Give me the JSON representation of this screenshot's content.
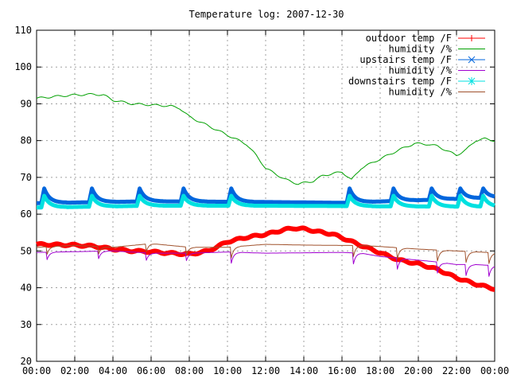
{
  "chart_data": {
    "type": "line",
    "title": "Temperature log: 2007-12-30",
    "xlabel": "",
    "ylabel": "",
    "xlim": [
      "00:00",
      "24:00"
    ],
    "ylim": [
      20,
      110
    ],
    "x_ticks": [
      "00:00",
      "02:00",
      "04:00",
      "06:00",
      "08:00",
      "10:00",
      "12:00",
      "14:00",
      "16:00",
      "18:00",
      "20:00",
      "22:00",
      "00:00"
    ],
    "y_ticks": [
      20,
      30,
      40,
      50,
      60,
      70,
      80,
      90,
      100,
      110
    ],
    "grid": true,
    "legend_position": "top-right",
    "series": [
      {
        "name": "outdoor temp /F",
        "color": "#ff0000",
        "marker": "+",
        "points": [
          [
            0,
            51.8
          ],
          [
            1,
            51.7
          ],
          [
            2,
            51.6
          ],
          [
            3,
            51.3
          ],
          [
            4,
            50.5
          ],
          [
            5,
            50.0
          ],
          [
            6,
            49.8
          ],
          [
            7,
            49.4
          ],
          [
            8,
            49.1
          ],
          [
            9,
            50.0
          ],
          [
            10,
            52.5
          ],
          [
            11,
            53.7
          ],
          [
            12,
            54.5
          ],
          [
            13,
            55.8
          ],
          [
            13.5,
            56.2
          ],
          [
            14,
            56.0
          ],
          [
            15,
            55.0
          ],
          [
            15.5,
            54.6
          ],
          [
            16,
            53.6
          ],
          [
            17,
            51.5
          ],
          [
            18,
            49.5
          ],
          [
            19,
            47.5
          ],
          [
            20,
            46.5
          ],
          [
            21,
            45.0
          ],
          [
            22,
            42.7
          ],
          [
            23,
            41.0
          ],
          [
            24,
            39.7
          ]
        ]
      },
      {
        "name": "humidity /%",
        "color": "#00a000",
        "marker": "",
        "points": [
          [
            0,
            91.5
          ],
          [
            1,
            92.0
          ],
          [
            2,
            92.4
          ],
          [
            3,
            92.6
          ],
          [
            3.5,
            92.4
          ],
          [
            4,
            91.0
          ],
          [
            5,
            90.0
          ],
          [
            6,
            89.7
          ],
          [
            7,
            89.4
          ],
          [
            7.5,
            88.8
          ],
          [
            8,
            86.5
          ],
          [
            9,
            84.0
          ],
          [
            10,
            81.5
          ],
          [
            11,
            79.0
          ],
          [
            11.5,
            76.0
          ],
          [
            12,
            72.5
          ],
          [
            13,
            69.5
          ],
          [
            13.7,
            68.2
          ],
          [
            14.5,
            69.0
          ],
          [
            15,
            70.5
          ],
          [
            16,
            71.5
          ],
          [
            16.5,
            69.3
          ],
          [
            17,
            72.5
          ],
          [
            18,
            75.0
          ],
          [
            19,
            77.5
          ],
          [
            19.8,
            79.2
          ],
          [
            20.5,
            79.0
          ],
          [
            21,
            78.5
          ],
          [
            22,
            76.0
          ],
          [
            22.5,
            77.5
          ],
          [
            23,
            80.0
          ],
          [
            23.5,
            80.5
          ],
          [
            24,
            80.0
          ]
        ]
      },
      {
        "name": "upstairs temp /F",
        "color": "#0066dd",
        "marker": "x",
        "sawtooth": {
          "base": 62.5,
          "drift": [
            [
              0,
              63.0
            ],
            [
              6,
              63.5
            ],
            [
              12,
              63.3
            ],
            [
              16,
              63.1
            ],
            [
              24,
              64.5
            ]
          ],
          "peaks": [
            0.4,
            2.9,
            5.4,
            7.7,
            10.2,
            16.4,
            18.7,
            20.7,
            22.2,
            23.4
          ],
          "peak": 67.0
        }
      },
      {
        "name": "humidity /%",
        "color": "#a000d0",
        "marker": "",
        "dips": [
          0.5,
          3.2,
          5.7,
          7.8,
          10.2,
          16.6,
          18.9,
          21.0,
          22.5,
          23.7
        ],
        "points": [
          [
            0,
            49.6
          ],
          [
            2,
            49.8
          ],
          [
            4,
            50.0
          ],
          [
            6,
            49.4
          ],
          [
            8,
            49.4
          ],
          [
            10,
            49.7
          ],
          [
            12,
            49.4
          ],
          [
            14,
            49.5
          ],
          [
            16,
            49.6
          ],
          [
            17,
            49.4
          ],
          [
            18,
            48.5
          ],
          [
            20,
            47.5
          ],
          [
            21,
            47.0
          ],
          [
            22,
            46.3
          ],
          [
            23,
            46.3
          ],
          [
            24,
            46.0
          ]
        ]
      },
      {
        "name": "downstairs temp /F",
        "color": "#00e0e0",
        "marker": "*",
        "sawtooth": {
          "base": 61.8,
          "drift": [
            [
              0,
              61.8
            ],
            [
              6,
              62.3
            ],
            [
              12,
              62.3
            ],
            [
              16,
              62.2
            ],
            [
              24,
              62.0
            ]
          ],
          "peaks": [
            0.4,
            2.9,
            5.4,
            7.7,
            10.2,
            16.4,
            18.7,
            20.7,
            22.2,
            23.4
          ],
          "peak": 65.0
        }
      },
      {
        "name": "humidity /%",
        "color": "#a0522d",
        "marker": "",
        "dips": [
          0.5,
          3.2,
          5.7,
          7.8,
          10.2,
          16.6,
          18.9,
          21.0,
          22.5,
          23.7
        ],
        "points": [
          [
            0,
            51.0
          ],
          [
            2,
            51.5
          ],
          [
            4,
            51.0
          ],
          [
            6,
            52.0
          ],
          [
            8,
            51.0
          ],
          [
            10,
            51.0
          ],
          [
            12,
            51.8
          ],
          [
            14,
            51.6
          ],
          [
            16,
            51.5
          ],
          [
            17,
            51.5
          ],
          [
            18,
            51.2
          ],
          [
            20,
            50.5
          ],
          [
            22,
            50.0
          ],
          [
            24,
            49.5
          ]
        ]
      }
    ]
  }
}
